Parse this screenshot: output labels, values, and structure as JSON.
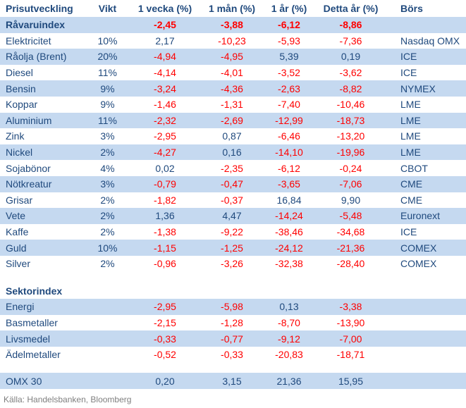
{
  "colors": {
    "text_navy": "#1F497D",
    "negative_red": "#FF0000",
    "row_shade_blue": "#C5D9F0",
    "footer_gray": "#7F7F7F",
    "background": "#FFFFFF"
  },
  "table": {
    "headers": [
      "Prisutveckling",
      "Vikt",
      "1 vecka (%)",
      "1 mån (%)",
      "1 år (%)",
      "Detta år (%)",
      "Börs"
    ],
    "rows": [
      {
        "label": "Råvaruindex",
        "weight": "",
        "week": "-2,45",
        "month": "-3,88",
        "year": "-6,12",
        "ytd": "-8,86",
        "exchange": "",
        "bold": true,
        "shaded": true
      },
      {
        "label": "Elektricitet",
        "weight": "10%",
        "week": "2,17",
        "month": "-10,23",
        "year": "-5,93",
        "ytd": "-7,36",
        "exchange": "Nasdaq OMX",
        "bold": false,
        "shaded": false
      },
      {
        "label": "Råolja (Brent)",
        "weight": "20%",
        "week": "-4,94",
        "month": "-4,95",
        "year": "5,39",
        "ytd": "0,19",
        "exchange": "ICE",
        "bold": false,
        "shaded": true
      },
      {
        "label": "Diesel",
        "weight": "11%",
        "week": "-4,14",
        "month": "-4,01",
        "year": "-3,52",
        "ytd": "-3,62",
        "exchange": "ICE",
        "bold": false,
        "shaded": false
      },
      {
        "label": "Bensin",
        "weight": "9%",
        "week": "-3,24",
        "month": "-4,36",
        "year": "-2,63",
        "ytd": "-8,82",
        "exchange": "NYMEX",
        "bold": false,
        "shaded": true
      },
      {
        "label": "Koppar",
        "weight": "9%",
        "week": "-1,46",
        "month": "-1,31",
        "year": "-7,40",
        "ytd": "-10,46",
        "exchange": "LME",
        "bold": false,
        "shaded": false
      },
      {
        "label": "Aluminium",
        "weight": "11%",
        "week": "-2,32",
        "month": "-2,69",
        "year": "-12,99",
        "ytd": "-18,73",
        "exchange": "LME",
        "bold": false,
        "shaded": true
      },
      {
        "label": "Zink",
        "weight": "3%",
        "week": "-2,95",
        "month": "0,87",
        "year": "-6,46",
        "ytd": "-13,20",
        "exchange": "LME",
        "bold": false,
        "shaded": false
      },
      {
        "label": "Nickel",
        "weight": "2%",
        "week": "-4,27",
        "month": "0,16",
        "year": "-14,10",
        "ytd": "-19,96",
        "exchange": "LME",
        "bold": false,
        "shaded": true
      },
      {
        "label": "Sojabönor",
        "weight": "4%",
        "week": "0,02",
        "month": "-2,35",
        "year": "-6,12",
        "ytd": "-0,24",
        "exchange": "CBOT",
        "bold": false,
        "shaded": false
      },
      {
        "label": "Nötkreatur",
        "weight": "3%",
        "week": "-0,79",
        "month": "-0,47",
        "year": "-3,65",
        "ytd": "-7,06",
        "exchange": "CME",
        "bold": false,
        "shaded": true
      },
      {
        "label": "Grisar",
        "weight": "2%",
        "week": "-1,82",
        "month": "-0,37",
        "year": "16,84",
        "ytd": "9,90",
        "exchange": "CME",
        "bold": false,
        "shaded": false
      },
      {
        "label": "Vete",
        "weight": "2%",
        "week": "1,36",
        "month": "4,47",
        "year": "-14,24",
        "ytd": "-5,48",
        "exchange": "Euronext",
        "bold": false,
        "shaded": true
      },
      {
        "label": "Kaffe",
        "weight": "2%",
        "week": "-1,38",
        "month": "-9,22",
        "year": "-38,46",
        "ytd": "-34,68",
        "exchange": "ICE",
        "bold": false,
        "shaded": false
      },
      {
        "label": "Guld",
        "weight": "10%",
        "week": "-1,15",
        "month": "-1,25",
        "year": "-24,12",
        "ytd": "-21,36",
        "exchange": "COMEX",
        "bold": false,
        "shaded": true
      },
      {
        "label": "Silver",
        "weight": "2%",
        "week": "-0,96",
        "month": "-3,26",
        "year": "-32,38",
        "ytd": "-28,40",
        "exchange": "COMEX",
        "bold": false,
        "shaded": false
      },
      {
        "type": "spacer",
        "height": 16
      },
      {
        "label": "Sektorindex",
        "weight": "",
        "week": "",
        "month": "",
        "year": "",
        "ytd": "",
        "exchange": "",
        "bold": true,
        "shaded": false
      },
      {
        "label": "Energi",
        "weight": "",
        "week": "-2,95",
        "month": "-5,98",
        "year": "0,13",
        "ytd": "-3,38",
        "exchange": "",
        "bold": false,
        "shaded": true
      },
      {
        "label": "Basmetaller",
        "weight": "",
        "week": "-2,15",
        "month": "-1,28",
        "year": "-8,70",
        "ytd": "-13,90",
        "exchange": "",
        "bold": false,
        "shaded": false
      },
      {
        "label": "Livsmedel",
        "weight": "",
        "week": "-0,33",
        "month": "-0,77",
        "year": "-9,12",
        "ytd": "-7,00",
        "exchange": "",
        "bold": false,
        "shaded": true
      },
      {
        "label": "Ädelmetaller",
        "weight": "",
        "week": "-0,52",
        "month": "-0,33",
        "year": "-20,83",
        "ytd": "-18,71",
        "exchange": "",
        "bold": false,
        "shaded": false
      },
      {
        "type": "spacer",
        "height": 15
      },
      {
        "label": "OMX 30",
        "weight": "",
        "week": "0,20",
        "month": "3,15",
        "year": "21,36",
        "ytd": "15,95",
        "exchange": "",
        "bold": false,
        "shaded": true
      }
    ]
  },
  "footer": {
    "source": "Källa: Handelsbanken, Bloomberg"
  }
}
